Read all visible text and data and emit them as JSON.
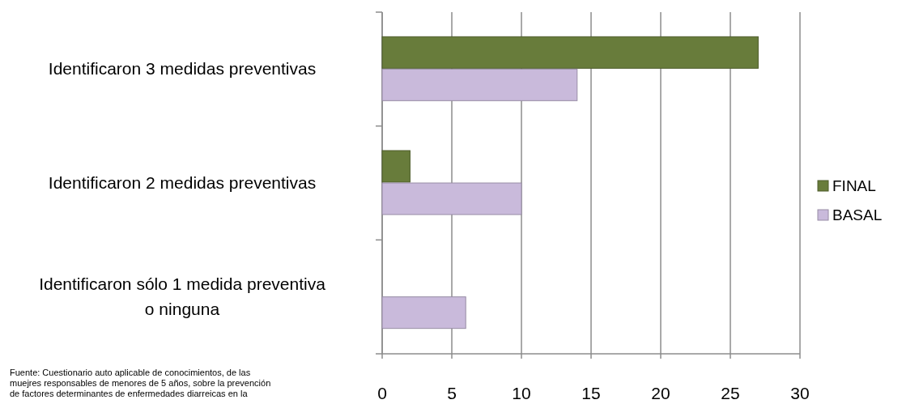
{
  "chart_data": {
    "type": "bar",
    "orientation": "horizontal",
    "categories": [
      "Identificaron 3 medidas preventivas",
      "Identificaron 2 medidas preventivas",
      "Identificaron sólo 1 medida preventiva o ninguna"
    ],
    "series": [
      {
        "name": "FINAL",
        "color": "#687c3b",
        "values": [
          27,
          2,
          0
        ]
      },
      {
        "name": "BASAL",
        "color": "#c9badb",
        "values": [
          14,
          10,
          6
        ]
      }
    ],
    "xlim": [
      0,
      30
    ],
    "xticks": [
      0,
      5,
      10,
      15,
      20,
      25,
      30
    ],
    "grid": "x",
    "legend": "right",
    "annotations": [
      "Fuente: Cuestionario auto aplicable de conocimientos, de las\nmuejres responsables de menores de 5 años, sobre la prevención\nde factores determinantes de enfermedades diarreicas en la"
    ]
  }
}
